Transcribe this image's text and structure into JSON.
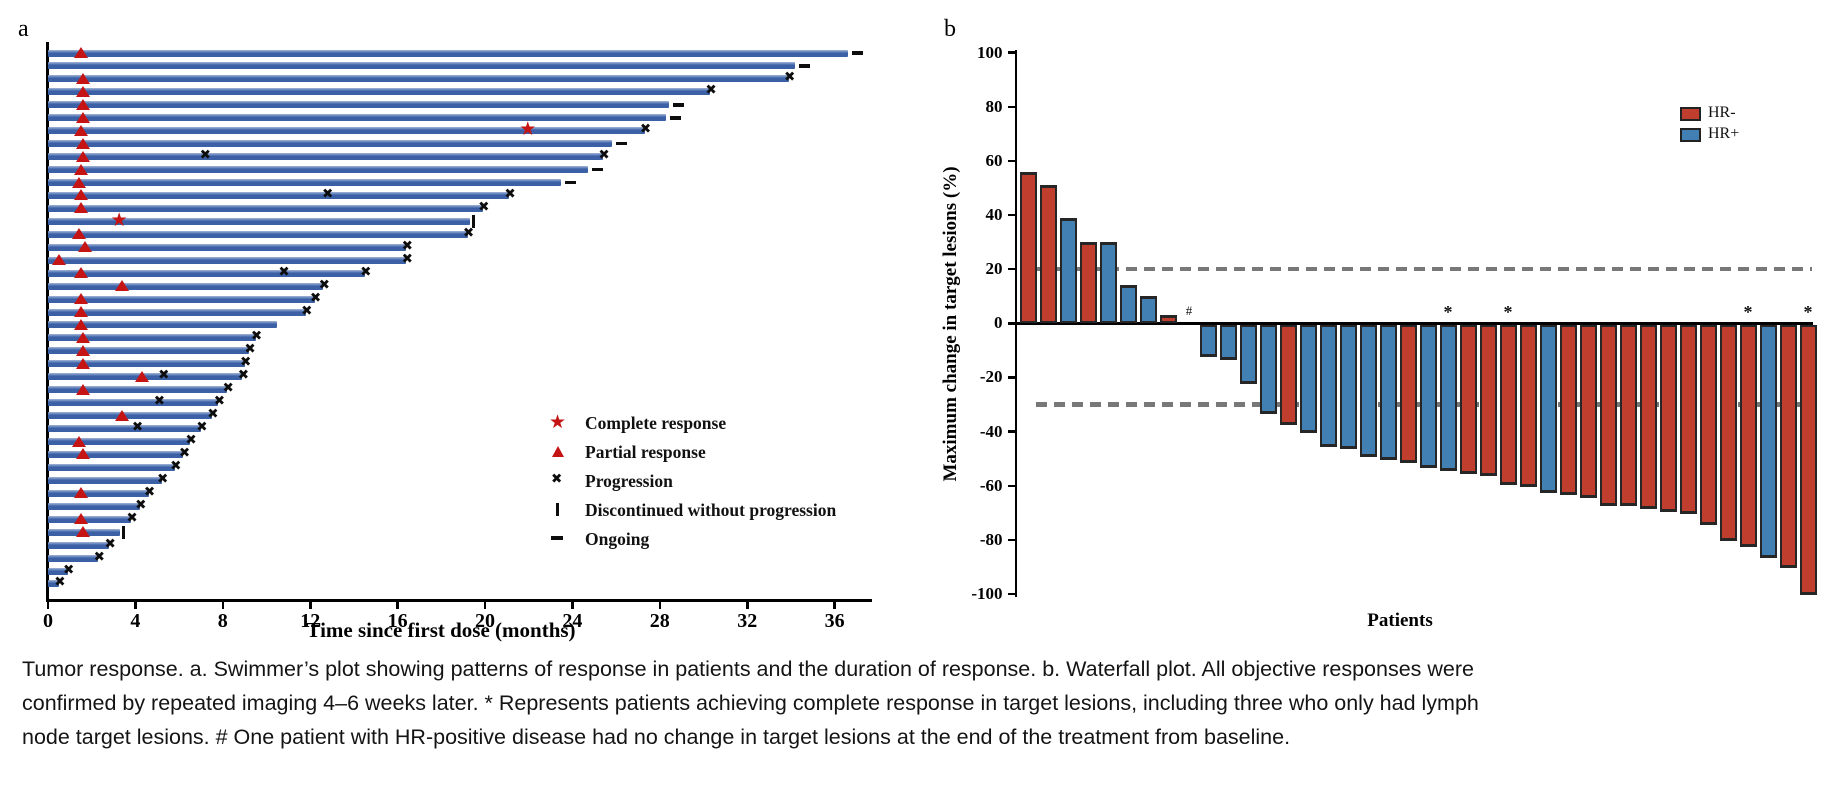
{
  "caption_lines": [
    "Tumor response. a. Swimmer’s plot showing patterns of response in patients and the duration of response. b. Waterfall plot. All objective responses were",
    "confirmed by repeated imaging 4–6 weeks later. * Represents patients achieving complete response in target lesions, including three who only had lymph",
    "node target lesions. # One patient with HR-positive disease had no change in target lesions at the end of the treatment from baseline."
  ],
  "colors": {
    "swimmer_bar": "#3b60a6",
    "swimmer_bar_light": "#a3b5d9",
    "marker_red": "#c41414",
    "hr_neg": "#bf3e2e",
    "hr_pos": "#4280b4",
    "axis": "#000000",
    "dashed_line": "#787878"
  },
  "chart_data": [
    {
      "id": "swimmer",
      "type": "bar",
      "panel_label": "a",
      "orientation": "horizontal",
      "xlabel": "Time since first dose (months)",
      "x_ticks": [
        0,
        4,
        8,
        12,
        16,
        20,
        24,
        28,
        32,
        36
      ],
      "xlim": [
        0,
        37.6
      ],
      "units": "months",
      "legend": [
        {
          "symbol": "star",
          "label": "Complete response"
        },
        {
          "symbol": "triangle",
          "label": "Partial response"
        },
        {
          "symbol": "cross",
          "label": "Progression"
        },
        {
          "symbol": "vbar",
          "label": "Discontinued without progression"
        },
        {
          "symbol": "dash",
          "label": "Ongoing"
        }
      ],
      "patients": [
        {
          "len": 36.6,
          "tri": 1.5,
          "end": "ongoing"
        },
        {
          "len": 34.2,
          "end": "ongoing"
        },
        {
          "len": 33.9,
          "tri": 1.6,
          "end": "x"
        },
        {
          "len": 30.3,
          "tri": 1.6,
          "end": "x"
        },
        {
          "len": 28.4,
          "tri": 1.6,
          "end": "ongoing"
        },
        {
          "len": 28.3,
          "tri": 1.6,
          "end": "ongoing"
        },
        {
          "len": 27.3,
          "tri": 1.5,
          "star": 22.0,
          "end": "x"
        },
        {
          "len": 25.8,
          "tri": 1.6,
          "end": "ongoing"
        },
        {
          "len": 25.4,
          "tri": 1.6,
          "mid_x": [
            7.2
          ],
          "end": "x"
        },
        {
          "len": 24.7,
          "tri": 1.5,
          "end": "ongoing"
        },
        {
          "len": 23.5,
          "tri": 1.4,
          "end": "ongoing"
        },
        {
          "len": 21.1,
          "tri": 1.5,
          "mid_x": [
            12.8
          ],
          "end": "x"
        },
        {
          "len": 19.9,
          "tri": 1.5,
          "end": "x"
        },
        {
          "len": 19.3,
          "star": 3.3,
          "end": "stop"
        },
        {
          "len": 19.2,
          "tri": 1.4,
          "end": "x"
        },
        {
          "len": 16.4,
          "tri": 1.7,
          "end": "x"
        },
        {
          "len": 16.4,
          "tri": 0.5,
          "end": "x"
        },
        {
          "len": 14.5,
          "tri": 1.5,
          "mid_x": [
            10.8
          ],
          "end": "x"
        },
        {
          "len": 12.6,
          "tri": 3.4,
          "end": "x"
        },
        {
          "len": 12.2,
          "tri": 1.5,
          "end": "x"
        },
        {
          "len": 11.8,
          "tri": 1.5,
          "end": "x"
        },
        {
          "len": 10.5,
          "tri": 1.5,
          "end": "none"
        },
        {
          "len": 9.5,
          "tri": 1.6,
          "end": "x"
        },
        {
          "len": 9.2,
          "tri": 1.6,
          "end": "x"
        },
        {
          "len": 9.0,
          "tri": 1.6,
          "end": "x"
        },
        {
          "len": 8.9,
          "tri": 4.3,
          "mid_x": [
            5.3
          ],
          "end": "x"
        },
        {
          "len": 8.2,
          "tri": 1.6,
          "end": "x"
        },
        {
          "len": 7.8,
          "mid_x": [
            5.1
          ],
          "end": "x"
        },
        {
          "len": 7.5,
          "tri": 3.4,
          "end": "x"
        },
        {
          "len": 7.0,
          "mid_x": [
            4.1
          ],
          "end": "x"
        },
        {
          "len": 6.5,
          "tri": 1.4,
          "end": "x"
        },
        {
          "len": 6.2,
          "tri": 1.6,
          "end": "x"
        },
        {
          "len": 5.8,
          "end": "x"
        },
        {
          "len": 5.2,
          "end": "x"
        },
        {
          "len": 4.6,
          "tri": 1.5,
          "end": "x"
        },
        {
          "len": 4.2,
          "end": "x"
        },
        {
          "len": 3.8,
          "tri": 1.5,
          "end": "x"
        },
        {
          "len": 3.3,
          "tri": 1.6,
          "end": "stop"
        },
        {
          "len": 2.8,
          "end": "x"
        },
        {
          "len": 2.3,
          "end": "x"
        },
        {
          "len": 0.9,
          "end": "x"
        },
        {
          "len": 0.5,
          "end": "x"
        }
      ]
    },
    {
      "id": "waterfall",
      "type": "bar",
      "panel_label": "b",
      "ylabel": "Maximum change in target lesions (%)",
      "xlabel": "Patients",
      "ylim": [
        -100,
        100
      ],
      "y_ticks": [
        100,
        80,
        60,
        40,
        20,
        0,
        -20,
        -40,
        -60,
        -80,
        -100
      ],
      "reference_lines": [
        20,
        -30
      ],
      "legend": [
        {
          "label": "HR-",
          "color_key": "hr_neg"
        },
        {
          "label": "HR+",
          "color_key": "hr_pos"
        }
      ],
      "values": [
        {
          "v": 56,
          "group": "HR-"
        },
        {
          "v": 51,
          "group": "HR-"
        },
        {
          "v": 39,
          "group": "HR+"
        },
        {
          "v": 30,
          "group": "HR-"
        },
        {
          "v": 30,
          "group": "HR+"
        },
        {
          "v": 14,
          "group": "HR+"
        },
        {
          "v": 10,
          "group": "HR+"
        },
        {
          "v": 3,
          "group": "HR-"
        },
        {
          "v": 0,
          "group": "HR+",
          "mark": "#"
        },
        {
          "v": -12,
          "group": "HR+"
        },
        {
          "v": -13,
          "group": "HR+"
        },
        {
          "v": -22,
          "group": "HR+"
        },
        {
          "v": -33,
          "group": "HR+"
        },
        {
          "v": -37,
          "group": "HR-"
        },
        {
          "v": -40,
          "group": "HR+"
        },
        {
          "v": -45,
          "group": "HR+"
        },
        {
          "v": -46,
          "group": "HR+"
        },
        {
          "v": -49,
          "group": "HR+"
        },
        {
          "v": -50,
          "group": "HR+"
        },
        {
          "v": -51,
          "group": "HR-"
        },
        {
          "v": -53,
          "group": "HR+"
        },
        {
          "v": -54,
          "group": "HR+",
          "mark": "*"
        },
        {
          "v": -55,
          "group": "HR-"
        },
        {
          "v": -56,
          "group": "HR-"
        },
        {
          "v": -59,
          "group": "HR-",
          "mark": "*"
        },
        {
          "v": -60,
          "group": "HR-"
        },
        {
          "v": -62,
          "group": "HR+"
        },
        {
          "v": -63,
          "group": "HR-"
        },
        {
          "v": -64,
          "group": "HR-"
        },
        {
          "v": -67,
          "group": "HR-"
        },
        {
          "v": -67,
          "group": "HR-"
        },
        {
          "v": -68,
          "group": "HR-"
        },
        {
          "v": -69,
          "group": "HR-"
        },
        {
          "v": -70,
          "group": "HR-"
        },
        {
          "v": -74,
          "group": "HR-"
        },
        {
          "v": -80,
          "group": "HR-"
        },
        {
          "v": -82,
          "group": "HR-",
          "mark": "*"
        },
        {
          "v": -86,
          "group": "HR+"
        },
        {
          "v": -90,
          "group": "HR-"
        },
        {
          "v": -100,
          "group": "HR-",
          "mark": "*"
        }
      ]
    }
  ]
}
